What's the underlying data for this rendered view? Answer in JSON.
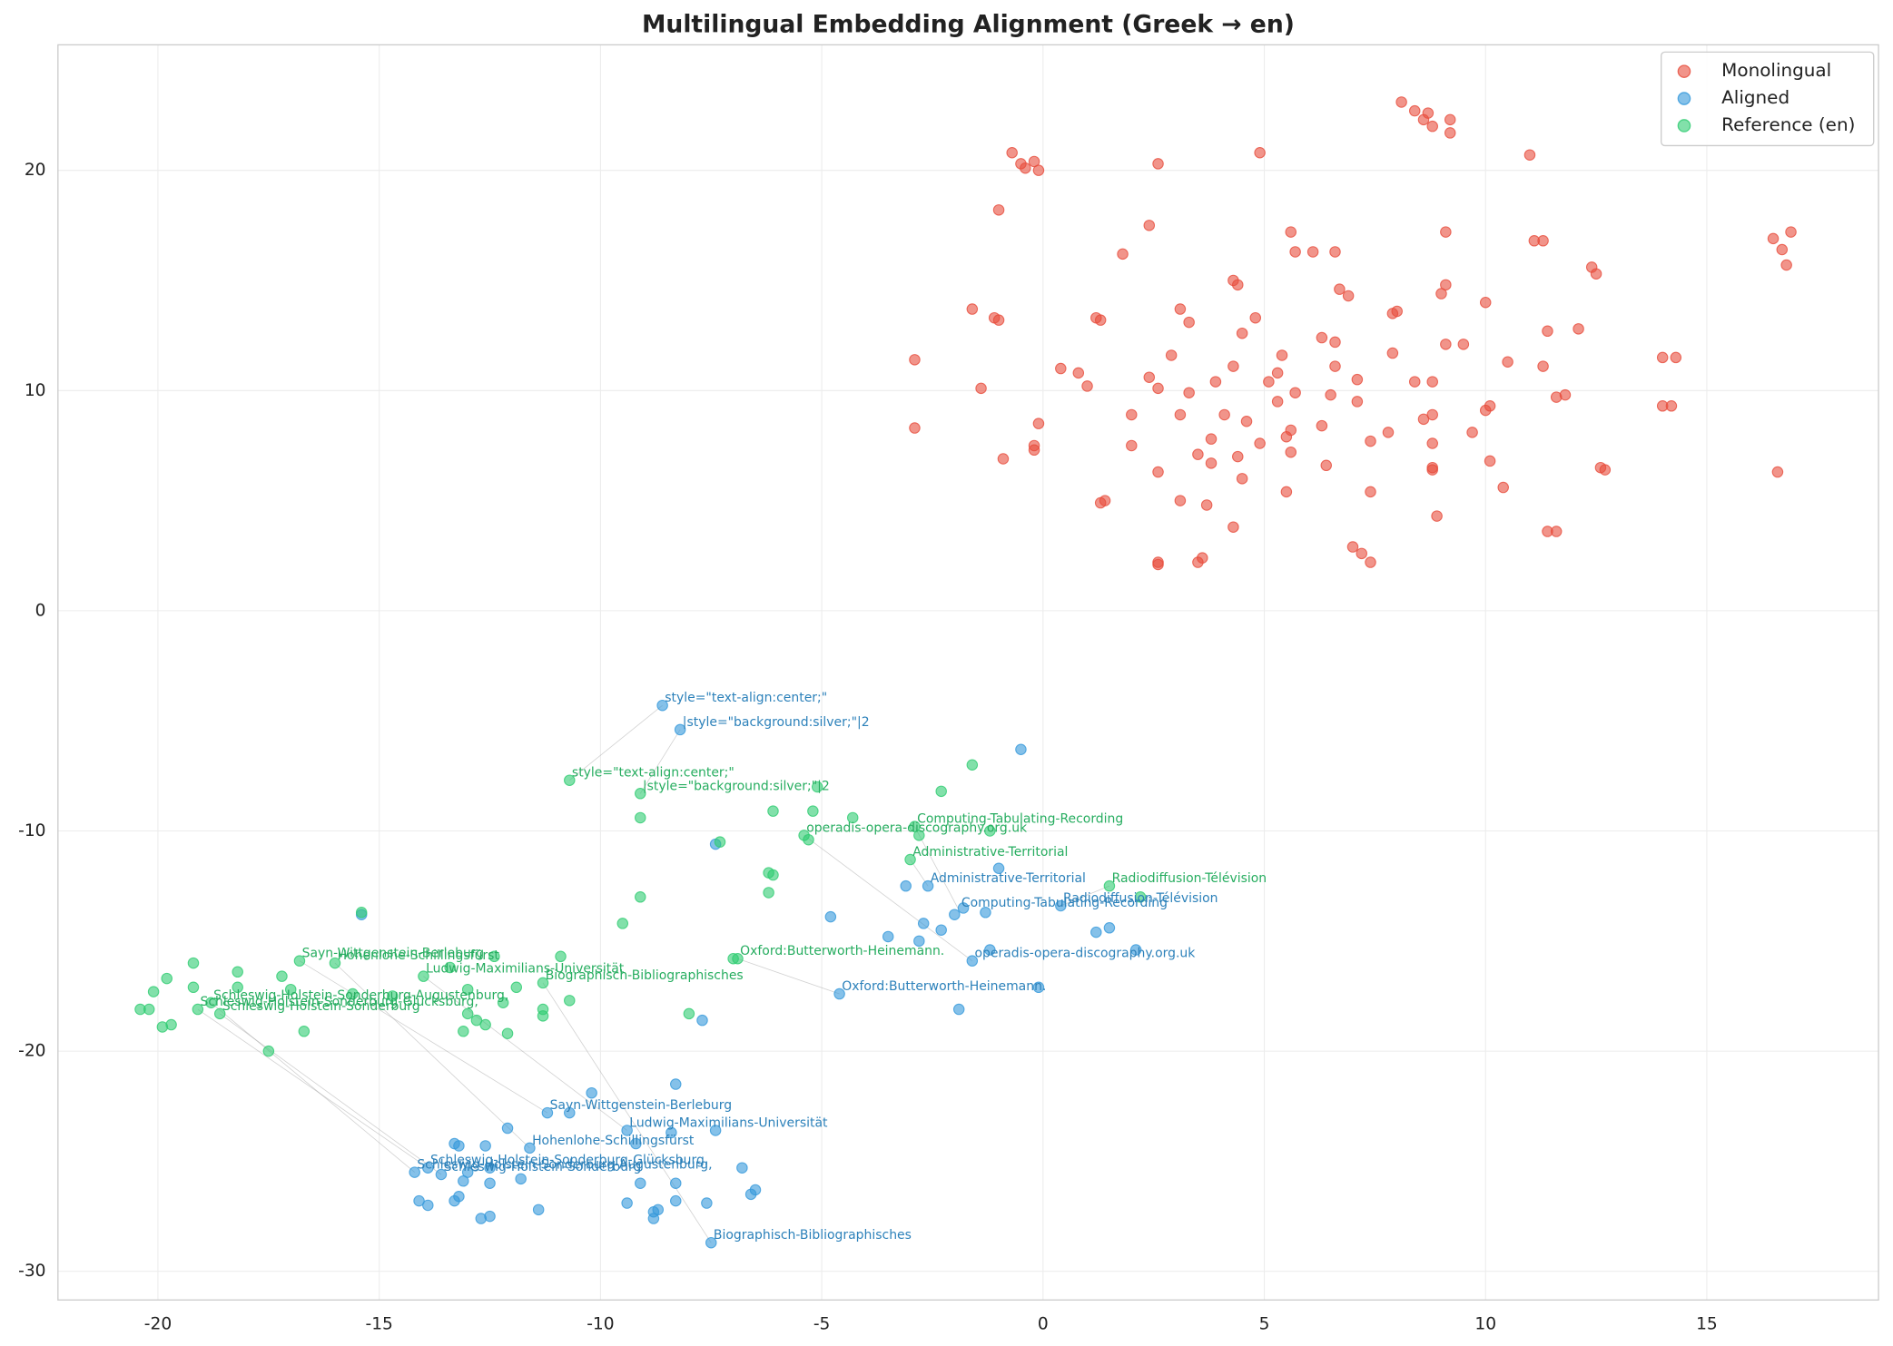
{
  "chart_data": {
    "type": "scatter",
    "title": "Multilingual Embedding Alignment (Greek → en)",
    "xlim": [
      -22.26,
      18.88
    ],
    "ylim": [
      -31.3,
      25.7
    ],
    "xticks": [
      -20,
      -15,
      -10,
      -5,
      0,
      5,
      10,
      15
    ],
    "yticks": [
      -30,
      -20,
      -10,
      0,
      10,
      20
    ],
    "grid": true,
    "legend": "upper-right",
    "series": [
      {
        "name": "Monolingual",
        "color": "#e74c3c",
        "x": [
          8.1,
          8.4,
          8.6,
          8.7,
          8.8,
          9.2,
          9.2,
          4.9,
          11.0,
          -0.7,
          -0.5,
          -0.4,
          -0.2,
          -0.1,
          2.6,
          -1.0,
          2.4,
          5.6,
          9.1,
          16.9,
          16.5,
          11.1,
          11.3,
          16.7,
          1.8,
          5.7,
          6.1,
          6.6,
          16.8,
          12.4,
          12.5,
          4.3,
          4.4,
          9.1,
          6.7,
          6.9,
          9.0,
          10.0,
          -1.6,
          3.1,
          8.0,
          7.9,
          -1.1,
          -1.0,
          1.2,
          1.3,
          4.8,
          3.3,
          6.3,
          4.5,
          11.4,
          12.1,
          6.6,
          9.1,
          9.5,
          2.9,
          5.4,
          7.9,
          -2.9,
          10.5,
          11.3,
          4.3,
          6.6,
          14.0,
          14.3,
          0.4,
          0.8,
          5.3,
          2.4,
          7.1,
          5.1,
          1.0,
          -1.4,
          3.9,
          8.4,
          8.8,
          2.6,
          3.3,
          5.7,
          6.5,
          5.3,
          7.1,
          11.8,
          11.6,
          14.0,
          14.2,
          10.0,
          10.1,
          2.0,
          3.1,
          4.1,
          8.8,
          8.6,
          4.6,
          -0.1,
          -2.9,
          6.3,
          5.6,
          5.5,
          7.8,
          9.7,
          3.8,
          4.9,
          8.8,
          2.0,
          -0.2,
          -0.2,
          7.4,
          5.6,
          3.5,
          4.4,
          -0.9,
          3.8,
          10.1,
          6.4,
          8.8,
          8.8,
          12.6,
          12.7,
          2.6,
          16.6,
          4.5,
          10.4,
          7.4,
          5.5,
          3.1,
          1.3,
          1.4,
          3.7,
          8.9,
          4.3,
          11.4,
          11.6,
          7.0,
          7.2,
          3.6,
          3.5,
          2.6,
          2.6,
          7.4
        ],
        "values": [
          23.1,
          22.7,
          22.3,
          22.6,
          22.0,
          22.3,
          21.7,
          20.8,
          20.7,
          20.8,
          20.3,
          20.1,
          20.4,
          20.0,
          20.3,
          18.2,
          17.5,
          17.2,
          17.2,
          17.2,
          16.9,
          16.8,
          16.8,
          16.4,
          16.2,
          16.3,
          16.3,
          16.3,
          15.7,
          15.6,
          15.3,
          15.0,
          14.8,
          14.8,
          14.6,
          14.3,
          14.4,
          14.0,
          13.7,
          13.7,
          13.6,
          13.5,
          13.3,
          13.2,
          13.3,
          13.2,
          13.3,
          13.1,
          12.4,
          12.6,
          12.7,
          12.8,
          12.2,
          12.1,
          12.1,
          11.6,
          11.6,
          11.7,
          11.4,
          11.3,
          11.1,
          11.1,
          11.1,
          11.5,
          11.5,
          11.0,
          10.8,
          10.8,
          10.6,
          10.5,
          10.4,
          10.2,
          10.1,
          10.4,
          10.4,
          10.4,
          10.1,
          9.9,
          9.9,
          9.8,
          9.5,
          9.5,
          9.8,
          9.7,
          9.3,
          9.3,
          9.1,
          9.3,
          8.9,
          8.9,
          8.9,
          8.9,
          8.7,
          8.6,
          8.5,
          8.3,
          8.4,
          8.2,
          7.9,
          8.1,
          8.1,
          7.8,
          7.6,
          7.6,
          7.5,
          7.5,
          7.3,
          7.7,
          7.2,
          7.1,
          7.0,
          6.9,
          6.7,
          6.8,
          6.6,
          6.5,
          6.4,
          6.5,
          6.4,
          6.3,
          6.3,
          6.0,
          5.6,
          5.4,
          5.4,
          5.0,
          4.9,
          5.0,
          4.8,
          4.3,
          3.8,
          3.6,
          3.6,
          2.9,
          2.6,
          2.4,
          2.2,
          2.2,
          2.1,
          2.2
        ]
      },
      {
        "name": "Aligned",
        "color": "#3498db",
        "x": [
          -8.6,
          -8.2,
          -0.5,
          -7.4,
          -1.0,
          -3.1,
          -2.6,
          -1.8,
          -1.3,
          -2.0,
          0.4,
          -4.8,
          -2.7,
          -2.3,
          1.5,
          1.2,
          -3.5,
          -2.8,
          -1.2,
          2.1,
          -1.6,
          -0.1,
          -4.6,
          -1.9,
          -7.7,
          -15.4,
          -10.2,
          -8.3,
          -12.1,
          -11.2,
          -10.7,
          -7.4,
          -9.4,
          -8.4,
          -13.3,
          -13.2,
          -12.6,
          -11.6,
          -9.2,
          -12.5,
          -6.8,
          -14.2,
          -13.9,
          -13.6,
          -13.0,
          -11.8,
          -13.1,
          -12.5,
          -9.1,
          -8.3,
          -6.5,
          -6.6,
          -14.1,
          -13.2,
          -13.3,
          -13.9,
          -9.4,
          -8.3,
          -7.6,
          -8.7,
          -8.8,
          -11.4,
          -12.5,
          -12.7,
          -8.8,
          -7.5
        ],
        "values": [
          -4.3,
          -5.4,
          -6.3,
          -10.6,
          -11.7,
          -12.5,
          -12.5,
          -13.5,
          -13.7,
          -13.8,
          -13.4,
          -13.9,
          -14.2,
          -14.5,
          -14.4,
          -14.6,
          -14.8,
          -15.0,
          -15.4,
          -15.4,
          -15.9,
          -17.1,
          -17.4,
          -18.1,
          -18.6,
          -13.8,
          -21.9,
          -21.5,
          -23.5,
          -22.8,
          -22.8,
          -23.6,
          -23.6,
          -23.7,
          -24.2,
          -24.3,
          -24.3,
          -24.4,
          -24.2,
          -25.3,
          -25.3,
          -25.5,
          -25.3,
          -25.6,
          -25.5,
          -25.8,
          -25.9,
          -26.0,
          -26.0,
          -26.0,
          -26.3,
          -26.5,
          -26.8,
          -26.6,
          -26.8,
          -27.0,
          -26.9,
          -26.8,
          -26.9,
          -27.2,
          -27.3,
          -27.2,
          -27.5,
          -27.6,
          -27.6,
          -28.7
        ],
        "annotations": [
          {
            "text": "style=\"text-align:center;\"",
            "x": -8.6,
            "y": -4.3
          },
          {
            "text": "|style=\"background:silver;\"|2",
            "x": -8.2,
            "y": -5.4
          },
          {
            "text": "Administrative-Territorial",
            "x": -2.6,
            "y": -12.5
          },
          {
            "text": "Radiodiffusion-Télévision",
            "x": 0.4,
            "y": -13.4
          },
          {
            "text": "Computing-Tabulating-Recording",
            "x": -1.9,
            "y": -13.6
          },
          {
            "text": "operadis-opera-discography.org.uk",
            "x": -1.6,
            "y": -15.9
          },
          {
            "text": "Oxford:Butterworth-Heinemann.",
            "x": -4.6,
            "y": -17.4
          },
          {
            "text": "Sayn-Wittgenstein-Berleburg",
            "x": -11.2,
            "y": -22.8
          },
          {
            "text": "Ludwig-Maximilians-Universität",
            "x": -9.4,
            "y": -23.6
          },
          {
            "text": "Hohenlohe-Schillingsfürst",
            "x": -11.6,
            "y": -24.4
          },
          {
            "text": "Schleswig-Holstein-Sonderburg-Glücksburg,",
            "x": -13.9,
            "y": -25.3
          },
          {
            "text": "Schleswig-Holstein-Sonderburg-Augustenburg,",
            "x": -14.2,
            "y": -25.5
          },
          {
            "text": "Schleswig-Holstein-Sonderburg",
            "x": -13.6,
            "y": -25.6
          },
          {
            "text": "Biographisch-Bibliographisches",
            "x": -7.5,
            "y": -28.7
          }
        ]
      },
      {
        "name": "Reference (en)",
        "color": "#2ecc71",
        "x": [
          -10.7,
          -1.6,
          -9.1,
          -5.1,
          -2.3,
          -6.1,
          -5.2,
          -4.3,
          -9.1,
          -2.9,
          -1.2,
          -5.4,
          -2.8,
          -5.3,
          -7.3,
          -3.0,
          -6.2,
          -6.1,
          1.5,
          -6.2,
          2.2,
          -9.1,
          -15.4,
          -9.5,
          -12.4,
          -10.9,
          -6.9,
          -7.0,
          -16.8,
          -16.0,
          -19.2,
          -13.4,
          -18.2,
          -14.0,
          -17.2,
          -19.8,
          -11.3,
          -11.9,
          -19.2,
          -18.2,
          -17.0,
          -20.1,
          -13.0,
          -15.6,
          -14.7,
          -12.2,
          -10.7,
          -18.8,
          -11.3,
          -8.0,
          -20.4,
          -20.2,
          -19.1,
          -18.6,
          -13.0,
          -11.3,
          -12.8,
          -12.6,
          -19.7,
          -19.9,
          -13.1,
          -16.7,
          -12.1,
          -17.5
        ],
        "values": [
          -7.7,
          -7.0,
          -8.3,
          -8.0,
          -8.2,
          -9.1,
          -9.1,
          -9.4,
          -9.4,
          -9.8,
          -10.0,
          -10.2,
          -10.2,
          -10.4,
          -10.5,
          -11.3,
          -11.9,
          -12.0,
          -12.5,
          -12.8,
          -13.0,
          -13.0,
          -13.7,
          -14.2,
          -15.7,
          -15.7,
          -15.8,
          -15.8,
          -15.9,
          -16.0,
          -16.0,
          -16.2,
          -16.4,
          -16.6,
          -16.6,
          -16.7,
          -16.9,
          -17.1,
          -17.1,
          -17.1,
          -17.2,
          -17.3,
          -17.2,
          -17.4,
          -17.5,
          -17.8,
          -17.7,
          -17.8,
          -18.1,
          -18.3,
          -18.1,
          -18.1,
          -18.1,
          -18.3,
          -18.3,
          -18.4,
          -18.6,
          -18.8,
          -18.8,
          -18.9,
          -19.1,
          -19.1,
          -19.2,
          -20.0
        ],
        "annotations": [
          {
            "text": "style=\"text-align:center;\"",
            "x": -10.7,
            "y": -7.7
          },
          {
            "text": "|style=\"background:silver;\"|2",
            "x": -9.1,
            "y": -8.3
          },
          {
            "text": "Computing-Tabulating-Recording",
            "x": -2.9,
            "y": -9.8
          },
          {
            "text": "operadis-opera-discography.org.uk",
            "x": -5.4,
            "y": -10.2
          },
          {
            "text": "Administrative-Territorial",
            "x": -3.0,
            "y": -11.3
          },
          {
            "text": "Radiodiffusion-Télévision",
            "x": 1.5,
            "y": -12.5
          },
          {
            "text": "Oxford:Butterworth-Heinemann.",
            "x": -6.9,
            "y": -15.8
          },
          {
            "text": "Sayn-Wittgenstein-Berleburg",
            "x": -16.8,
            "y": -15.9
          },
          {
            "text": "Hohenlohe-Schillingsfürst",
            "x": -16.0,
            "y": -16.0
          },
          {
            "text": "Ludwig-Maximilians-Universität",
            "x": -14.0,
            "y": -16.6
          },
          {
            "text": "Biographisch-Bibliographisches",
            "x": -11.3,
            "y": -16.9
          },
          {
            "text": "Schleswig-Holstein-Sonderburg-Augustenburg,",
            "x": -18.8,
            "y": -17.8
          },
          {
            "text": "Schleswig-Holstein-Sonderburg-Glücksburg,",
            "x": -19.1,
            "y": -18.1
          },
          {
            "text": "Schleswig-Holstein-Sonderburg",
            "x": -18.6,
            "y": -18.3
          }
        ]
      }
    ]
  }
}
